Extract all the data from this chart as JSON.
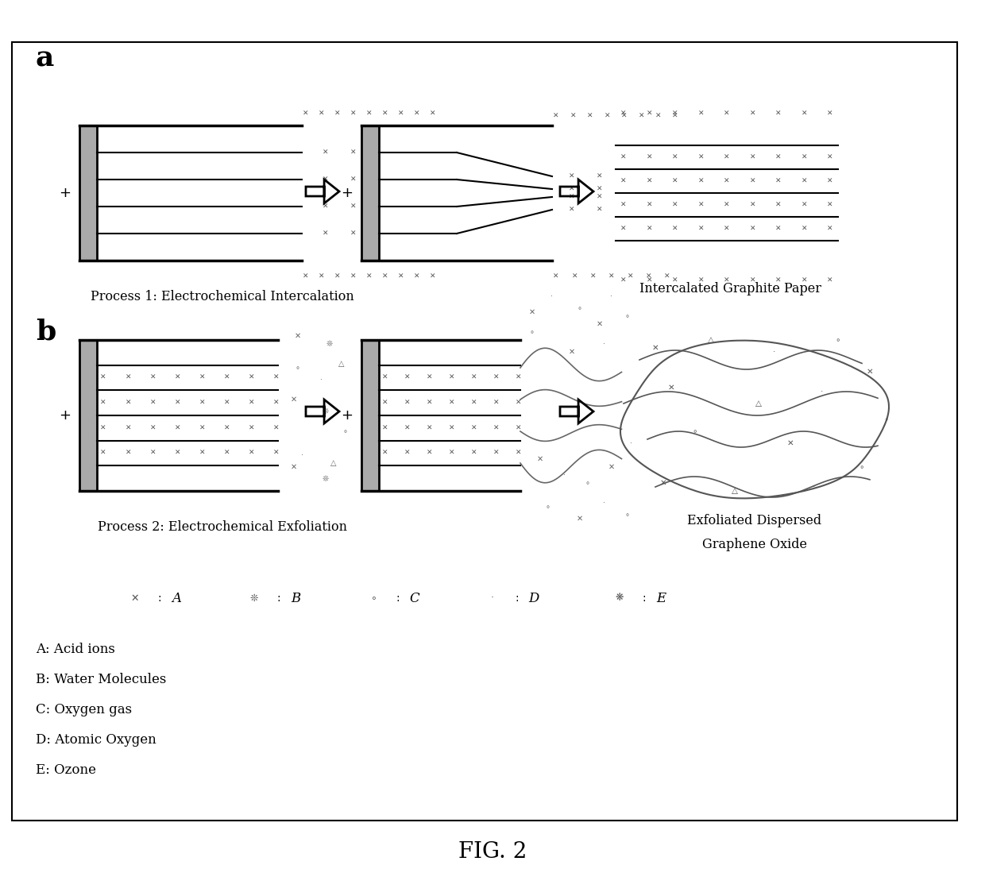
{
  "title": "FIG. 2",
  "label_a": "a",
  "label_b": "b",
  "process1_label": "Process 1: Electrochemical Intercalation",
  "process2_label": "Process 2: Electrochemical Exfoliation",
  "result1_label": "Intercalated Graphite Paper",
  "result2_line1": "Exfoliated Dispersed",
  "result2_line2": "Graphene Oxide",
  "legend_items": [
    "A",
    "B",
    "C",
    "D",
    "E"
  ],
  "legend_descriptions": [
    "A: Acid ions",
    "B: Water Molecules",
    "C: Oxygen gas",
    "D: Atomic Oxygen",
    "E: Ozone"
  ],
  "bg_color": "#ffffff",
  "box_color": "#000000",
  "graphite_color": "#555555",
  "line_color": "#000000"
}
